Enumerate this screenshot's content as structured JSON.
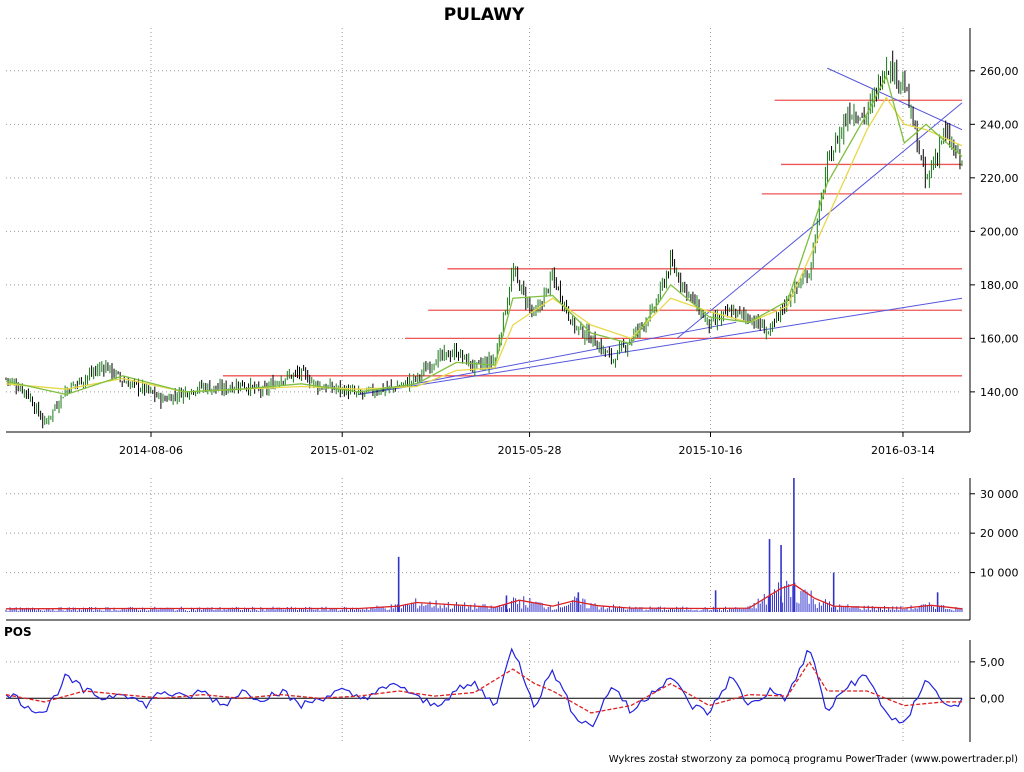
{
  "title": "PULAWY",
  "credit": "Wykres został stworzony za pomocą programu PowerTrader (www.powertrader.pl)",
  "colors": {
    "up_candle": "#1a7a1a",
    "down_candle": "#000000",
    "ma_fast": "#7fbf3f",
    "ma_slow": "#e8d84a",
    "trend_line": "#5555dd",
    "level_line": "#ee5555",
    "volume_bar": "#3333cc",
    "volume_avg": "#dd2222",
    "pos_line": "#2222dd",
    "pos_signal": "#dd2222",
    "grid": "#999999"
  },
  "chart_data": [
    {
      "type": "line",
      "panel": "price",
      "title": "PULAWY",
      "xlabel": "",
      "ylabel": "",
      "x_tick_labels": [
        "2014-08-06",
        "2015-01-02",
        "2015-05-28",
        "2015-10-16",
        "2016-03-14"
      ],
      "y_tick_labels": [
        "140,00",
        "160,00",
        "180,00",
        "200,00",
        "220,00",
        "240,00",
        "260,00"
      ],
      "y_ticks": [
        140,
        160,
        180,
        200,
        220,
        240,
        260
      ],
      "ylim": [
        125,
        276
      ],
      "x_range": [
        "2014-04-15",
        "2016-04-29"
      ],
      "grid": true,
      "close_series": {
        "x": [
          "2014-04-15",
          "2014-05-01",
          "2014-05-15",
          "2014-06-01",
          "2014-06-15",
          "2014-07-01",
          "2014-07-15",
          "2014-08-01",
          "2014-08-15",
          "2014-09-01",
          "2014-09-15",
          "2014-10-01",
          "2014-10-15",
          "2014-11-01",
          "2014-11-15",
          "2014-12-01",
          "2014-12-15",
          "2015-01-01",
          "2015-01-15",
          "2015-02-01",
          "2015-02-15",
          "2015-03-01",
          "2015-03-15",
          "2015-04-01",
          "2015-04-15",
          "2015-05-01",
          "2015-05-15",
          "2015-06-01",
          "2015-06-15",
          "2015-07-01",
          "2015-07-15",
          "2015-08-01",
          "2015-08-15",
          "2015-09-01",
          "2015-09-15",
          "2015-10-01",
          "2015-10-15",
          "2015-11-01",
          "2015-11-15",
          "2015-12-01",
          "2015-12-15",
          "2016-01-01",
          "2016-01-15",
          "2016-02-01",
          "2016-02-15",
          "2016-03-01",
          "2016-03-15",
          "2016-04-01",
          "2016-04-15",
          "2016-04-29"
        ],
        "values": [
          145,
          140,
          128,
          141,
          145,
          150,
          144,
          141,
          137,
          140,
          142,
          141,
          143,
          140,
          145,
          147,
          142,
          141,
          139,
          141,
          142,
          145,
          152,
          155,
          149,
          152,
          185,
          168,
          183,
          165,
          160,
          152,
          160,
          170,
          188,
          175,
          165,
          170,
          168,
          162,
          175,
          185,
          225,
          245,
          243,
          263,
          255,
          218,
          237,
          225
        ]
      },
      "ma_fast_series": {
        "x": [
          "2014-04-15",
          "2014-06-01",
          "2014-07-15",
          "2014-09-01",
          "2014-10-15",
          "2014-12-01",
          "2015-01-15",
          "2015-03-01",
          "2015-04-01",
          "2015-05-01",
          "2015-05-15",
          "2015-06-15",
          "2015-07-15",
          "2015-08-15",
          "2015-09-15",
          "2015-10-15",
          "2015-11-15",
          "2015-12-15",
          "2016-01-15",
          "2016-02-15",
          "2016-03-01",
          "2016-03-15",
          "2016-04-01",
          "2016-04-29"
        ],
        "values": [
          144,
          139,
          146,
          140,
          141,
          143,
          140,
          143,
          151,
          150,
          175,
          176,
          162,
          158,
          180,
          168,
          166,
          174,
          218,
          244,
          258,
          233,
          240,
          228
        ]
      },
      "ma_slow_series": {
        "x": [
          "2014-04-15",
          "2014-06-01",
          "2014-07-15",
          "2014-09-01",
          "2014-10-15",
          "2014-12-01",
          "2015-01-15",
          "2015-03-01",
          "2015-04-01",
          "2015-05-01",
          "2015-05-15",
          "2015-06-15",
          "2015-07-15",
          "2015-08-15",
          "2015-09-15",
          "2015-10-15",
          "2015-11-15",
          "2015-12-15",
          "2016-01-15",
          "2016-02-15",
          "2016-03-01",
          "2016-03-15",
          "2016-04-01",
          "2016-04-29"
        ],
        "values": [
          143,
          141,
          145,
          140,
          141,
          142,
          141,
          142,
          148,
          149,
          165,
          175,
          165,
          160,
          175,
          170,
          166,
          172,
          205,
          238,
          250,
          240,
          238,
          232
        ]
      },
      "horizontal_levels": [
        {
          "value": 146,
          "from": "2014-10-01",
          "to": "2016-04-29"
        },
        {
          "value": 160,
          "from": "2015-02-20",
          "to": "2016-04-29"
        },
        {
          "value": 170.5,
          "from": "2015-03-10",
          "to": "2016-04-29"
        },
        {
          "value": 186,
          "from": "2015-03-25",
          "to": "2016-04-29"
        },
        {
          "value": 214,
          "from": "2015-11-25",
          "to": "2016-04-29"
        },
        {
          "value": 225,
          "from": "2015-12-10",
          "to": "2016-04-29"
        },
        {
          "value": 249,
          "from": "2015-12-05",
          "to": "2016-04-29"
        }
      ],
      "trend_lines": [
        {
          "from": [
            "2015-01-15",
            139
          ],
          "to": [
            "2016-04-29",
            175
          ]
        },
        {
          "from": [
            "2015-01-15",
            139
          ],
          "to": [
            "2015-11-05",
            166
          ]
        },
        {
          "from": [
            "2015-09-20",
            160
          ],
          "to": [
            "2016-04-29",
            248
          ]
        },
        {
          "from": [
            "2016-01-15",
            261
          ],
          "to": [
            "2016-04-29",
            238
          ]
        }
      ]
    },
    {
      "type": "bar",
      "panel": "volume",
      "y_tick_labels": [
        "10 000",
        "20 000",
        "30 000"
      ],
      "y_ticks": [
        10000,
        20000,
        30000
      ],
      "ylim": [
        0,
        34000
      ],
      "spikes": [
        {
          "x": "2015-02-15",
          "value": 14000
        },
        {
          "x": "2015-05-10",
          "value": 4200
        },
        {
          "x": "2015-07-05",
          "value": 5000
        },
        {
          "x": "2015-10-20",
          "value": 5500
        },
        {
          "x": "2015-12-01",
          "value": 18500
        },
        {
          "x": "2015-12-10",
          "value": 17000
        },
        {
          "x": "2015-12-20",
          "value": 34000
        },
        {
          "x": "2016-01-20",
          "value": 10000
        },
        {
          "x": "2016-04-10",
          "value": 5000
        }
      ],
      "avg_series": {
        "x": [
          "2014-04-15",
          "2014-08-01",
          "2015-01-15",
          "2015-02-15",
          "2015-03-01",
          "2015-05-01",
          "2015-05-20",
          "2015-06-15",
          "2015-07-01",
          "2015-07-20",
          "2015-08-15",
          "2015-10-15",
          "2015-11-15",
          "2015-12-10",
          "2015-12-20",
          "2016-01-05",
          "2016-01-20",
          "2016-02-15",
          "2016-03-15",
          "2016-04-05",
          "2016-04-29"
        ],
        "values": [
          800,
          900,
          900,
          1500,
          2400,
          1200,
          3000,
          1500,
          2800,
          1600,
          1000,
          900,
          1000,
          6000,
          7000,
          3500,
          1500,
          1200,
          1000,
          1700,
          800
        ]
      }
    },
    {
      "type": "line",
      "panel": "indicator",
      "title": "POS",
      "y_tick_labels": [
        "0,00",
        "5,00"
      ],
      "y_ticks": [
        0,
        5
      ],
      "ylim": [
        -6,
        8
      ],
      "pos_series": {
        "x": [
          "2014-04-15",
          "2014-05-01",
          "2014-05-15",
          "2014-06-01",
          "2014-06-15",
          "2014-07-01",
          "2014-07-15",
          "2014-08-01",
          "2014-08-15",
          "2014-09-01",
          "2014-09-15",
          "2014-10-01",
          "2014-10-15",
          "2014-11-01",
          "2014-11-15",
          "2014-12-01",
          "2014-12-15",
          "2015-01-01",
          "2015-01-15",
          "2015-02-01",
          "2015-02-15",
          "2015-03-01",
          "2015-03-15",
          "2015-04-01",
          "2015-04-15",
          "2015-05-01",
          "2015-05-15",
          "2015-06-01",
          "2015-06-15",
          "2015-07-01",
          "2015-07-15",
          "2015-08-01",
          "2015-08-15",
          "2015-09-01",
          "2015-09-15",
          "2015-10-01",
          "2015-10-15",
          "2015-11-01",
          "2015-11-15",
          "2015-12-01",
          "2015-12-15",
          "2016-01-01",
          "2016-01-15",
          "2016-02-01",
          "2016-02-15",
          "2016-03-01",
          "2016-03-15",
          "2016-04-01",
          "2016-04-15",
          "2016-04-29"
        ],
        "values": [
          1,
          -1,
          -2,
          3,
          1,
          0,
          1,
          -1,
          1,
          0,
          1,
          -1,
          1,
          0,
          1,
          -1,
          0,
          1,
          0,
          1,
          2,
          0,
          -1,
          1,
          2,
          -1,
          7,
          -1,
          4,
          -2,
          -4,
          2,
          -2,
          1,
          3,
          -1,
          -2,
          3,
          -1,
          1,
          0,
          7,
          -2,
          2,
          3,
          -2,
          -4,
          3,
          -1,
          -0.5
        ]
      },
      "signal_series": {
        "x": [
          "2014-04-15",
          "2014-05-15",
          "2014-06-15",
          "2014-07-15",
          "2014-08-15",
          "2014-09-15",
          "2014-10-15",
          "2014-11-15",
          "2014-12-15",
          "2015-01-15",
          "2015-02-15",
          "2015-03-15",
          "2015-04-15",
          "2015-05-15",
          "2015-06-01",
          "2015-06-15",
          "2015-07-15",
          "2015-08-15",
          "2015-09-15",
          "2015-10-15",
          "2015-11-15",
          "2015-12-15",
          "2016-01-01",
          "2016-01-15",
          "2016-02-15",
          "2016-03-15",
          "2016-04-15",
          "2016-04-29"
        ],
        "values": [
          0.5,
          -0.5,
          1,
          0.5,
          0,
          0.5,
          0,
          0.5,
          0,
          0.3,
          1,
          0.3,
          0.8,
          4,
          2,
          1,
          -2,
          -1,
          2,
          -1,
          0.5,
          0.3,
          5,
          1,
          1,
          -1,
          -0.5,
          -0.5
        ]
      }
    }
  ]
}
